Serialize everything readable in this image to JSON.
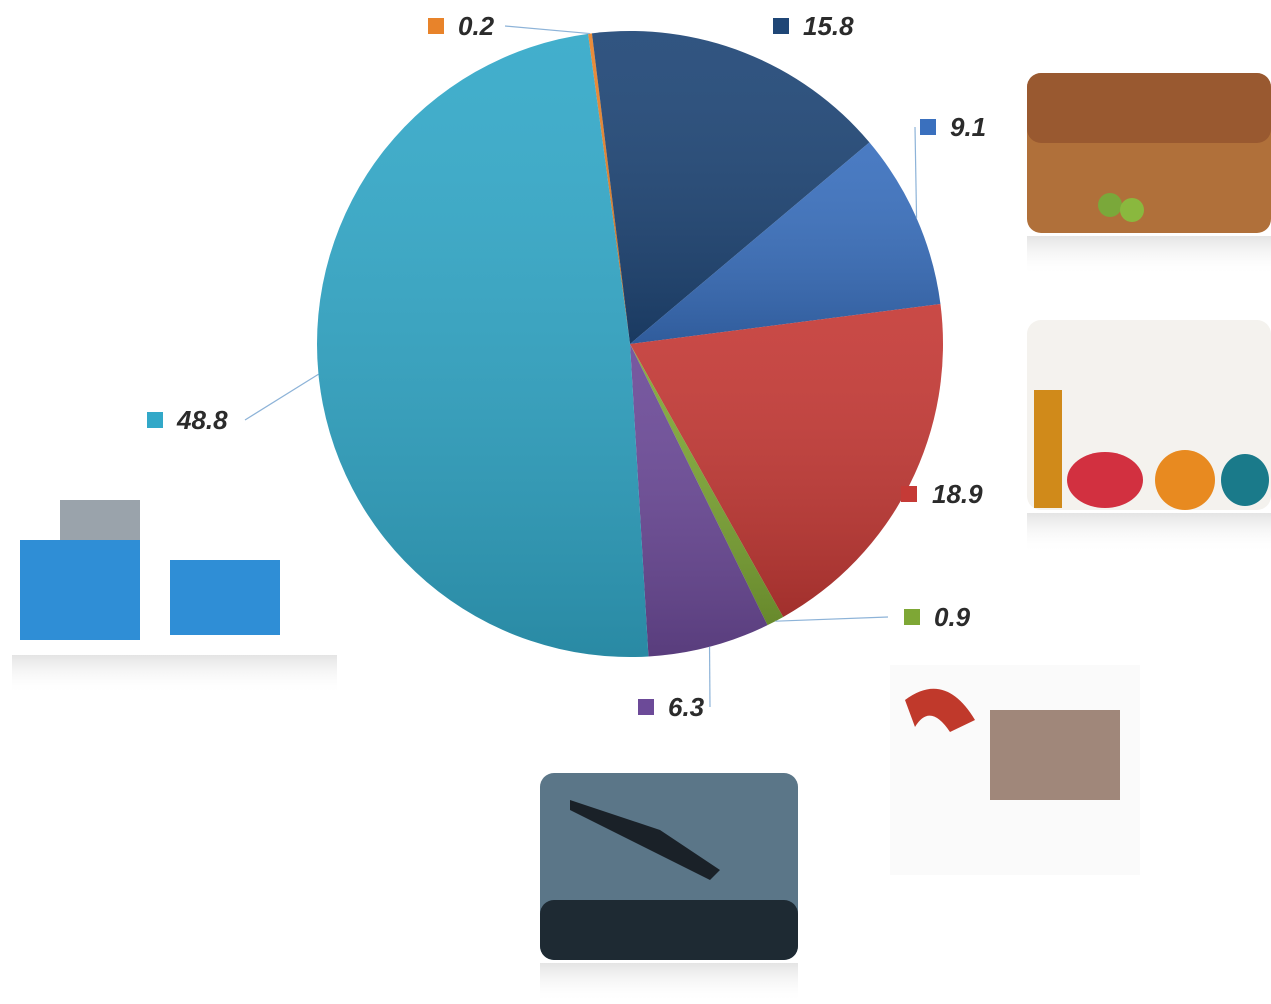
{
  "chart_data": {
    "type": "pie",
    "values": [
      0.2,
      15.8,
      9.1,
      18.9,
      0.9,
      6.3,
      48.8
    ],
    "colors": [
      "#e8832a",
      "#1f4676",
      "#3a70be",
      "#c53a36",
      "#7ea735",
      "#6c4a98",
      "#32a8c8"
    ]
  }
}
